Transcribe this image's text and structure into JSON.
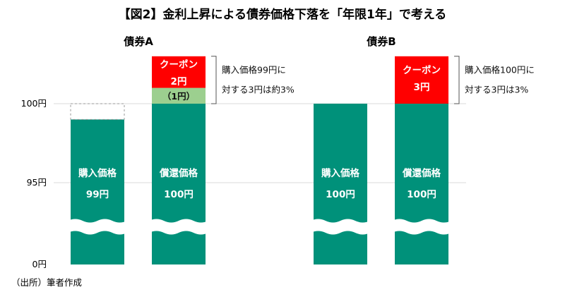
{
  "chart_data": {
    "type": "bar",
    "title": "【図2】金利上昇による債券価格下落を「年限1年」で考える",
    "source": "（出所）筆者作成",
    "y_ticks": [
      "100円",
      "95円",
      "0円"
    ],
    "y_tick_values": [
      100,
      95,
      0
    ],
    "axis_break": true,
    "colors": {
      "base": "#00917a",
      "coupon": "#ff0000",
      "gain": "#9ccf8f"
    },
    "groups": [
      {
        "name": "債券A",
        "bars": [
          {
            "label_line1": "購入価格",
            "label_line2": "99円",
            "value": 99,
            "dashed_top_to": 100
          },
          {
            "label_line1": "償還価格",
            "label_line2": "100円",
            "value": 100,
            "segments": [
              {
                "type": "gain",
                "value": 1,
                "label": "（1円）"
              },
              {
                "type": "coupon",
                "value": 2,
                "label_line1": "クーポン",
                "label_line2": "2円"
              }
            ],
            "note_line1": "購入価格99円に",
            "note_line2": "対する3円は約3%"
          }
        ]
      },
      {
        "name": "債券B",
        "bars": [
          {
            "label_line1": "購入価格",
            "label_line2": "100円",
            "value": 100
          },
          {
            "label_line1": "償還価格",
            "label_line2": "100円",
            "value": 100,
            "segments": [
              {
                "type": "coupon",
                "value": 3,
                "label_line1": "クーポン",
                "label_line2": "3円"
              }
            ],
            "note_line1": "購入価格100円に",
            "note_line2": "対する3円は3%"
          }
        ]
      }
    ]
  }
}
